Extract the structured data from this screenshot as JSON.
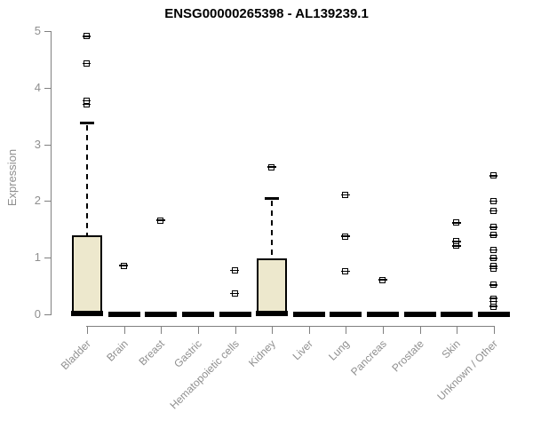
{
  "chart_data": {
    "type": "boxplot",
    "title": "ENSG00000265398 - AL139239.1",
    "ylabel": "Expression",
    "xlabel": "",
    "ylim": [
      0,
      5
    ],
    "yticks": [
      0,
      1,
      2,
      3,
      4,
      5
    ],
    "grid": false,
    "legend": "none",
    "box_fill_color": "#EDE8CD",
    "box_border_color": "#000000",
    "axis_color": "#808080",
    "tick_label_color": "#8F8F8F",
    "title_color": "#000000",
    "categories": [
      "Bladder",
      "Brain",
      "Breast",
      "Gastric",
      "Hematopoietic cells",
      "Kidney",
      "Liver",
      "Lung",
      "Pancreas",
      "Prostate",
      "Skin",
      "Unknown / Other"
    ],
    "series": [
      {
        "category": "Bladder",
        "q1": 0,
        "median": 0.02,
        "q3": 1.4,
        "whisker_low": 0,
        "whisker_high": 3.39,
        "outliers": [
          3.7,
          3.76,
          4.42,
          4.9
        ]
      },
      {
        "category": "Brain",
        "q1": 0,
        "median": 0,
        "q3": 0,
        "whisker_low": 0,
        "whisker_high": 0,
        "outliers": [
          0.85
        ]
      },
      {
        "category": "Breast",
        "q1": 0,
        "median": 0,
        "q3": 0,
        "whisker_low": 0,
        "whisker_high": 0,
        "outliers": [
          1.65
        ]
      },
      {
        "category": "Gastric",
        "q1": 0,
        "median": 0,
        "q3": 0,
        "whisker_low": 0,
        "whisker_high": 0,
        "outliers": []
      },
      {
        "category": "Hematopoietic cells",
        "q1": 0,
        "median": 0,
        "q3": 0,
        "whisker_low": 0,
        "whisker_high": 0,
        "outliers": [
          0.36,
          0.77
        ]
      },
      {
        "category": "Kidney",
        "q1": 0,
        "median": 0.02,
        "q3": 0.99,
        "whisker_low": 0,
        "whisker_high": 2.05,
        "outliers": [
          2.59
        ]
      },
      {
        "category": "Liver",
        "q1": 0,
        "median": 0,
        "q3": 0,
        "whisker_low": 0,
        "whisker_high": 0,
        "outliers": []
      },
      {
        "category": "Lung",
        "q1": 0,
        "median": 0,
        "q3": 0,
        "whisker_low": 0,
        "whisker_high": 0,
        "outliers": [
          0.75,
          1.37,
          2.1
        ]
      },
      {
        "category": "Pancreas",
        "q1": 0,
        "median": 0,
        "q3": 0,
        "whisker_low": 0,
        "whisker_high": 0,
        "outliers": [
          0.6
        ]
      },
      {
        "category": "Prostate",
        "q1": 0,
        "median": 0,
        "q3": 0,
        "whisker_low": 0,
        "whisker_high": 0,
        "outliers": []
      },
      {
        "category": "Skin",
        "q1": 0,
        "median": 0,
        "q3": 0,
        "whisker_low": 0,
        "whisker_high": 0,
        "outliers": [
          1.2,
          1.28,
          1.61
        ]
      },
      {
        "category": "Unknown / Other",
        "q1": 0,
        "median": 0,
        "q3": 0,
        "whisker_low": 0,
        "whisker_high": 0,
        "outliers": [
          0.13,
          0.22,
          0.27,
          0.51,
          0.8,
          0.84,
          0.98,
          1.13,
          1.39,
          1.53,
          1.82,
          1.99,
          2.44
        ]
      }
    ]
  }
}
